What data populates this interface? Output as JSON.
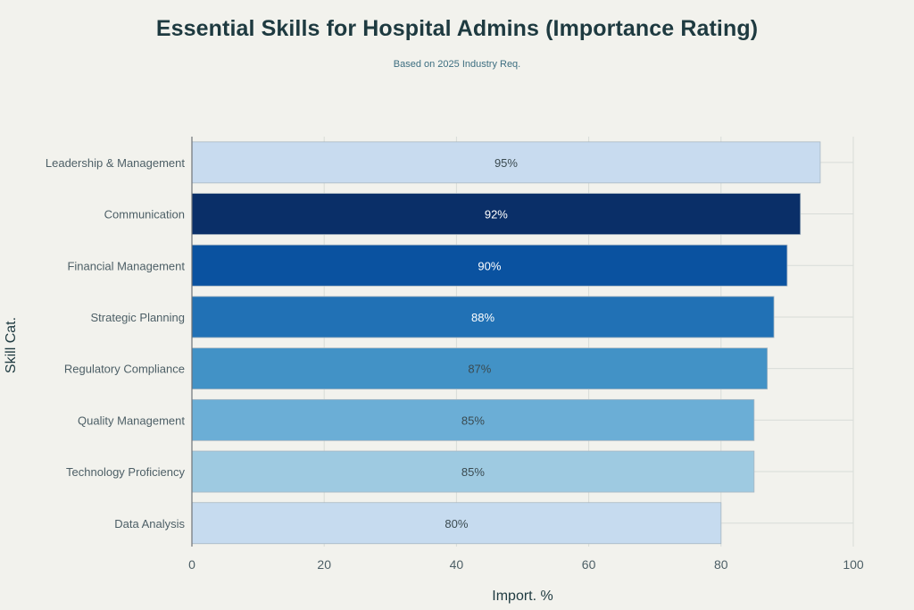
{
  "chart_data": {
    "type": "bar",
    "orientation": "horizontal",
    "title": "Essential Skills for Hospital Admins (Importance Rating)",
    "subtitle": "Based on 2025 Industry Req.",
    "xlabel": "Import. %",
    "ylabel": "Skill Cat.",
    "xlim": [
      0,
      100
    ],
    "xticks": [
      0,
      20,
      40,
      60,
      80,
      100
    ],
    "grid": true,
    "categories": [
      "Leadership & Management",
      "Communication",
      "Financial Management",
      "Strategic Planning",
      "Regulatory Compliance",
      "Quality Management",
      "Technology Proficiency",
      "Data Analysis"
    ],
    "values": [
      95,
      92,
      90,
      88,
      87,
      85,
      85,
      80
    ],
    "data_labels": [
      "95%",
      "92%",
      "90%",
      "88%",
      "87%",
      "85%",
      "85%",
      "80%"
    ],
    "colors": [
      "#c8dbef",
      "#0a2f68",
      "#0a52a0",
      "#2171b5",
      "#4292c6",
      "#6baed6",
      "#9ecae1",
      "#c6dbef"
    ],
    "label_colors": [
      "#3a4a50",
      "#ffffff",
      "#ffffff",
      "#ffffff",
      "#3a4a50",
      "#3a4a50",
      "#3a4a50",
      "#3a4a50"
    ],
    "bar_outline_color": "#a9b7c2",
    "grid_color": "#d8dcd8",
    "axis_color": "#6e7378"
  }
}
